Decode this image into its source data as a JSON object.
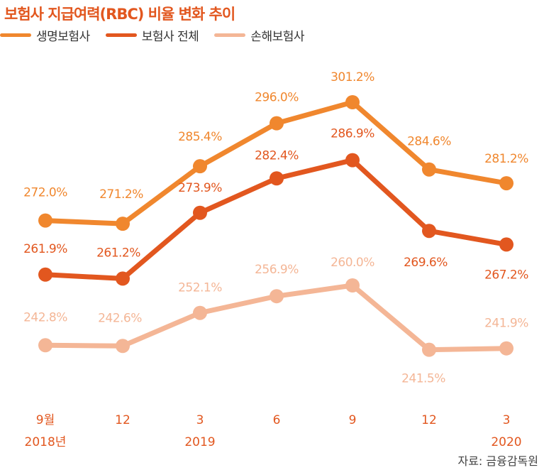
{
  "chart_data": {
    "type": "line",
    "title": "보험사 지급여력(RBC) 비율 변화 추이",
    "categories": [
      "9월",
      "12",
      "3",
      "6",
      "9",
      "12",
      "3"
    ],
    "year_labels": [
      "2018년",
      "",
      "2019",
      "",
      "",
      "",
      "2020"
    ],
    "series": [
      {
        "name": "생명보험사",
        "color": "#f0872e",
        "values": [
          272.0,
          271.2,
          285.4,
          296.0,
          301.2,
          284.6,
          281.2
        ]
      },
      {
        "name": "보험사 전체",
        "color": "#e2571f",
        "values": [
          261.9,
          261.2,
          273.9,
          282.4,
          286.9,
          269.6,
          267.2
        ]
      },
      {
        "name": "손해보험사",
        "color": "#f4b696",
        "values": [
          242.8,
          242.6,
          252.1,
          256.9,
          260.0,
          241.5,
          241.9
        ]
      }
    ],
    "value_suffix": "%",
    "grid": false,
    "legend_position": "top-left",
    "source": "자료: 금융감독원"
  }
}
